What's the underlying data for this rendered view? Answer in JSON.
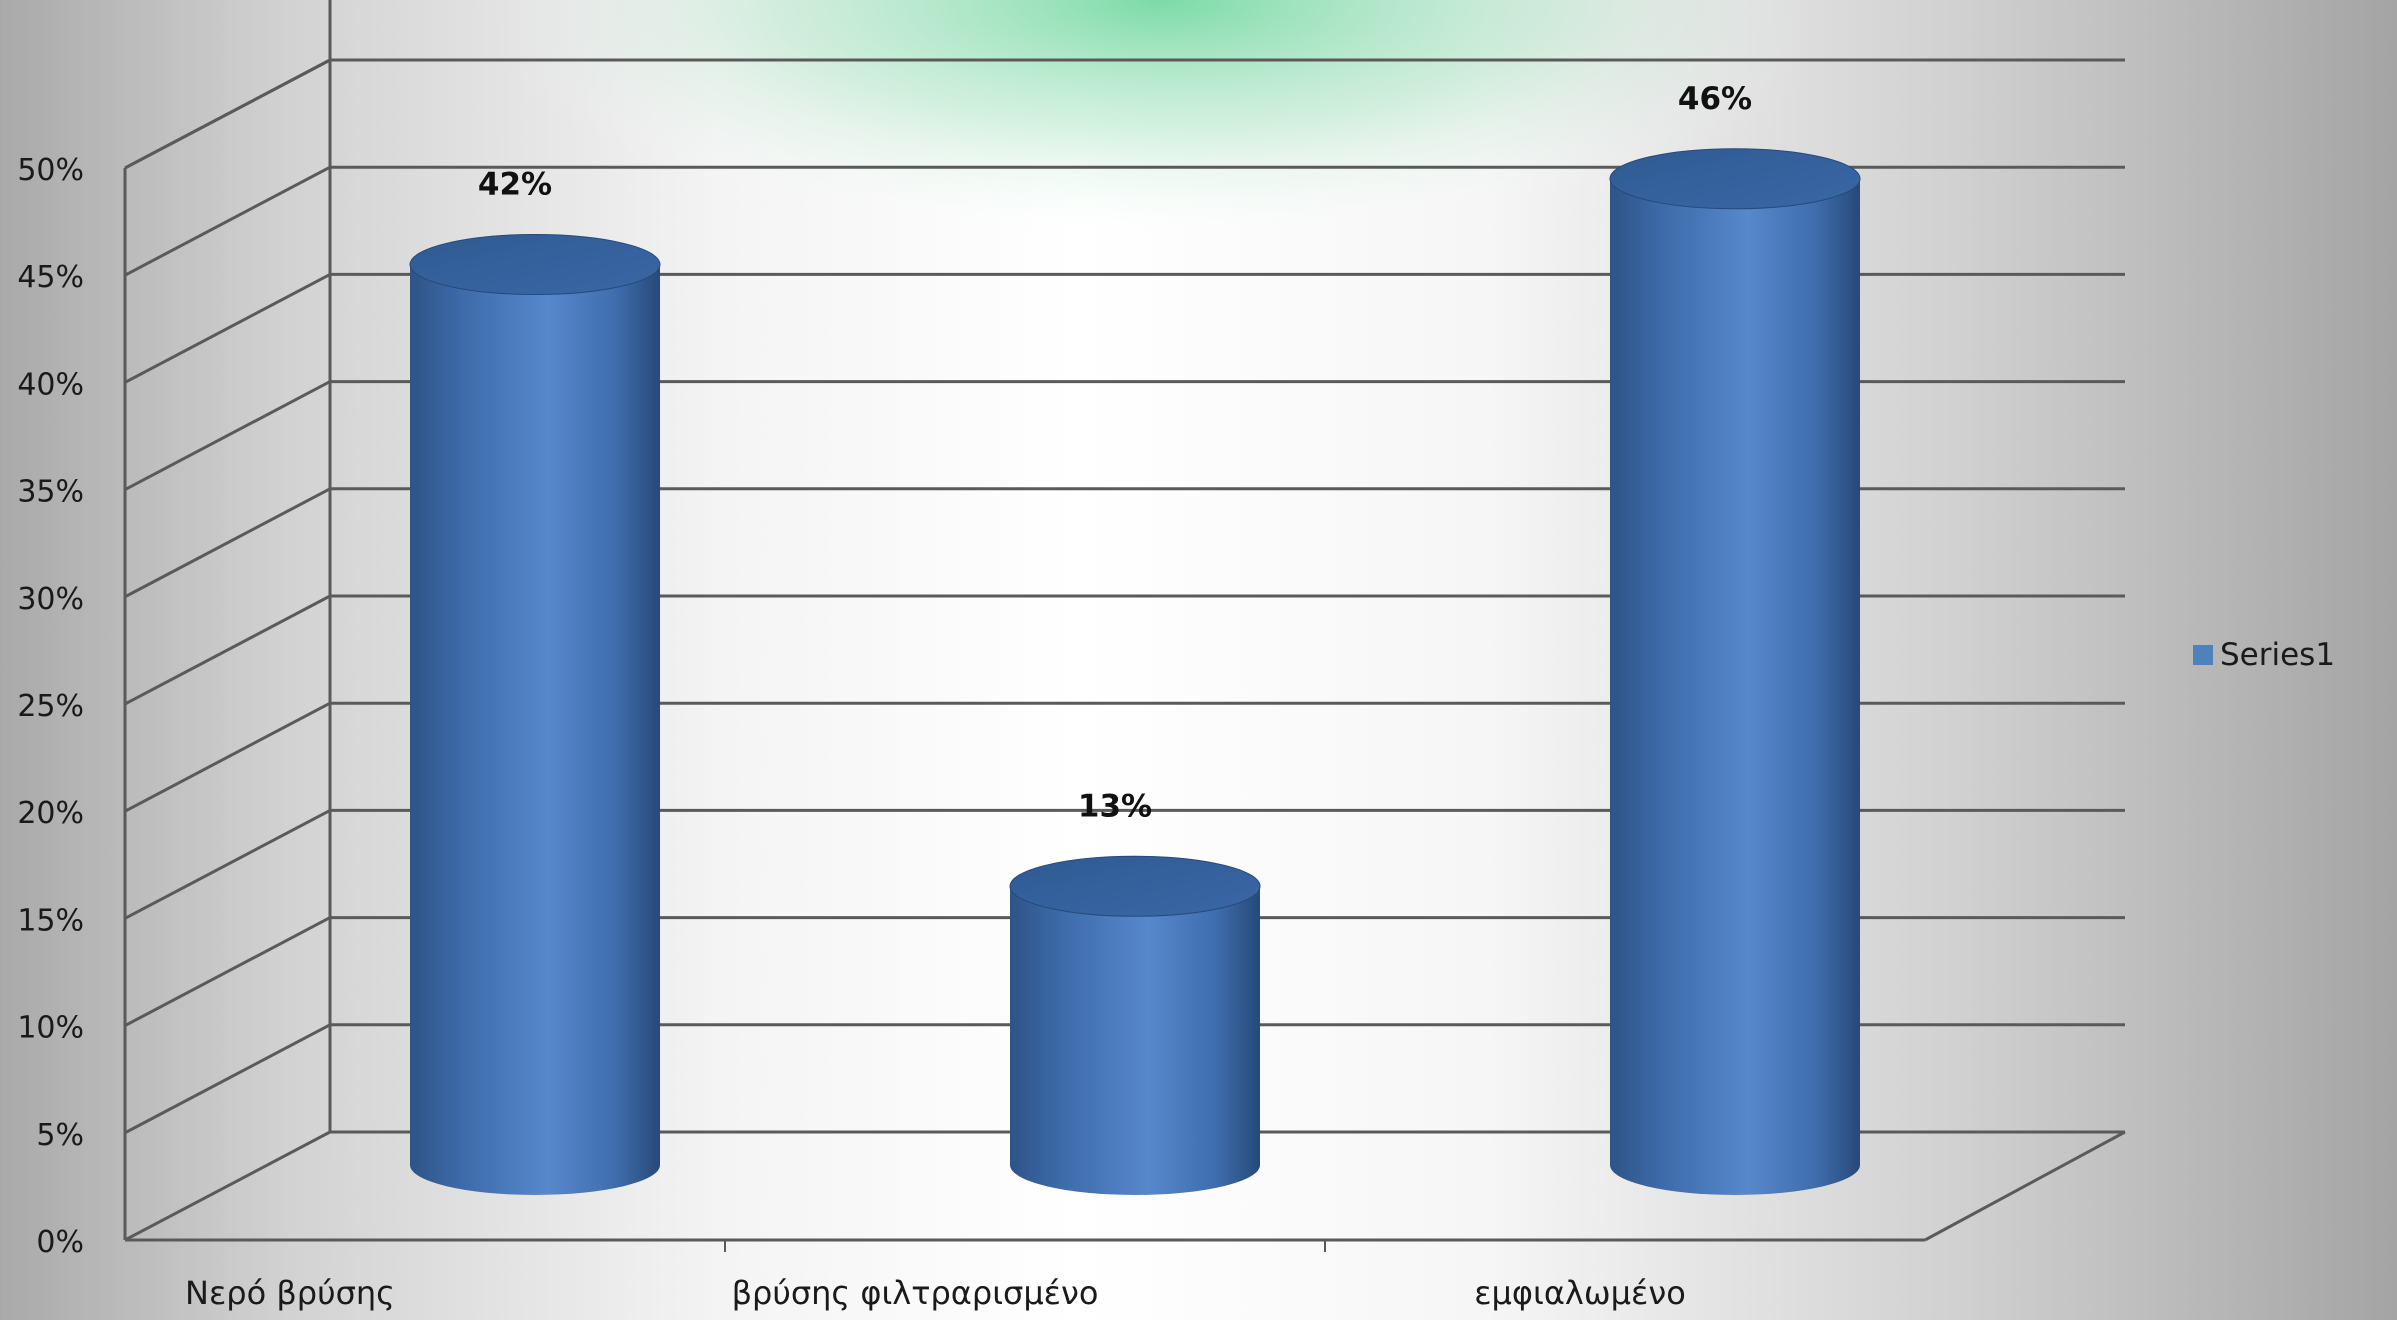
{
  "chart_data": {
    "type": "bar",
    "style": "3d-cylinder",
    "categories": [
      "Νερό βρύσης",
      "βρύσης φιλτραρισμένο",
      "εμφιαλωμένο"
    ],
    "series": [
      {
        "name": "Series1",
        "values": [
          42,
          13,
          46
        ],
        "labels": [
          "42%",
          "13%",
          "46%"
        ],
        "color": "#4f81bd"
      }
    ],
    "ylim": [
      0,
      50
    ],
    "ytick_labels": [
      "0%",
      "5%",
      "10%",
      "15%",
      "20%",
      "25%",
      "30%",
      "35%",
      "40%",
      "45%",
      "50%"
    ],
    "grid": true,
    "legend": "right",
    "colors": {
      "bar": "#4f81bd",
      "bar_dark": "#2c4f7c",
      "grid": "#5a5a5a",
      "glow": "#7fd6a5"
    }
  }
}
